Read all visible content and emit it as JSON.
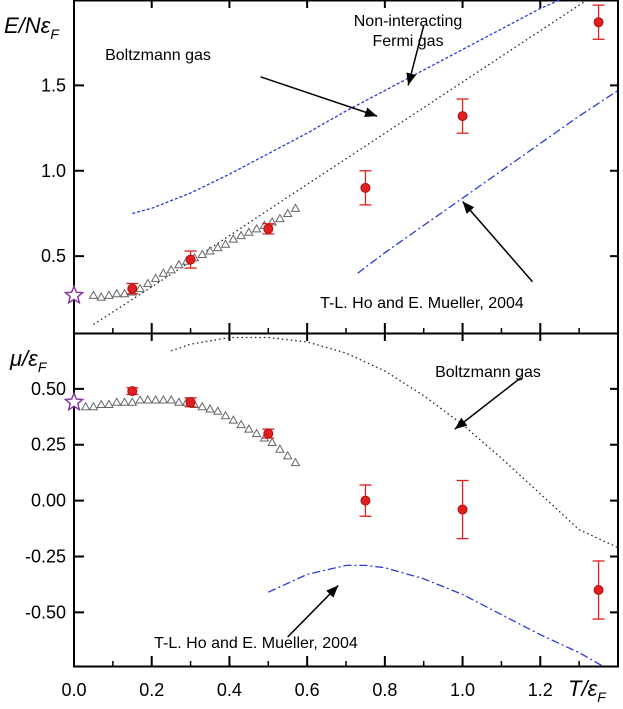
{
  "chart_data": [
    {
      "type": "scatter",
      "panel": "top",
      "ylabel": {
        "main": "E/Nε",
        "sub": "F"
      },
      "xlabel": {
        "main": "T/ε",
        "sub": "F"
      },
      "xlim": [
        0.0,
        1.4
      ],
      "ylim": [
        0.05,
        2.0
      ],
      "xticks": [
        "0.0",
        "0.2",
        "0.4",
        "0.6",
        "0.8",
        "1.0",
        "1.2"
      ],
      "yticks": [
        "0.5",
        "1.0",
        "1.5"
      ],
      "series": [
        {
          "kind": "curve",
          "style": "dashed",
          "color": "#2b3bd6",
          "points": [
            [
              0.15,
              0.75
            ],
            [
              0.2,
              0.78
            ],
            [
              0.3,
              0.87
            ],
            [
              0.4,
              0.98
            ],
            [
              0.5,
              1.1
            ],
            [
              0.6,
              1.22
            ],
            [
              0.7,
              1.35
            ],
            [
              0.8,
              1.47
            ],
            [
              0.9,
              1.59
            ],
            [
              1.0,
              1.71
            ],
            [
              1.1,
              1.83
            ],
            [
              1.2,
              1.95
            ],
            [
              1.25,
              2.0
            ]
          ]
        },
        {
          "kind": "curve",
          "style": "dotted",
          "color": "#222222",
          "points": [
            [
              0.05,
              0.1
            ],
            [
              0.2,
              0.32
            ],
            [
              0.4,
              0.62
            ],
            [
              0.6,
              0.92
            ],
            [
              0.8,
              1.22
            ],
            [
              1.0,
              1.52
            ],
            [
              1.2,
              1.82
            ],
            [
              1.32,
              2.0
            ]
          ]
        },
        {
          "kind": "curve",
          "style": "dashdot",
          "color": "#2b3bd6",
          "points": [
            [
              0.73,
              0.4
            ],
            [
              0.8,
              0.52
            ],
            [
              0.9,
              0.68
            ],
            [
              1.0,
              0.84
            ],
            [
              1.1,
              1.0
            ],
            [
              1.2,
              1.16
            ],
            [
              1.3,
              1.32
            ],
            [
              1.4,
              1.47
            ]
          ]
        },
        {
          "kind": "triangles",
          "color": "#666666",
          "points": [
            [
              0.05,
              0.27
            ],
            [
              0.07,
              0.26
            ],
            [
              0.09,
              0.27
            ],
            [
              0.11,
              0.28
            ],
            [
              0.13,
              0.28
            ],
            [
              0.15,
              0.29
            ],
            [
              0.17,
              0.31
            ],
            [
              0.19,
              0.34
            ],
            [
              0.21,
              0.37
            ],
            [
              0.23,
              0.4
            ],
            [
              0.25,
              0.42
            ],
            [
              0.27,
              0.45
            ],
            [
              0.29,
              0.47
            ],
            [
              0.31,
              0.49
            ],
            [
              0.33,
              0.51
            ],
            [
              0.35,
              0.53
            ],
            [
              0.37,
              0.55
            ],
            [
              0.39,
              0.57
            ],
            [
              0.41,
              0.6
            ],
            [
              0.43,
              0.62
            ],
            [
              0.45,
              0.64
            ],
            [
              0.47,
              0.66
            ],
            [
              0.49,
              0.68
            ],
            [
              0.51,
              0.7
            ],
            [
              0.53,
              0.72
            ],
            [
              0.55,
              0.75
            ],
            [
              0.57,
              0.78
            ]
          ]
        },
        {
          "kind": "errorbar",
          "color": "#e02020",
          "points": [
            {
              "x": 0.15,
              "y": 0.31,
              "err": 0.03
            },
            {
              "x": 0.3,
              "y": 0.48,
              "err": 0.05
            },
            {
              "x": 0.5,
              "y": 0.66,
              "err": 0.03
            },
            {
              "x": 0.75,
              "y": 0.9,
              "err": 0.1
            },
            {
              "x": 1.0,
              "y": 1.32,
              "err": 0.1
            },
            {
              "x": 1.35,
              "y": 1.87,
              "err": 0.1
            }
          ]
        },
        {
          "kind": "star",
          "color": "#8a3aa0",
          "points": [
            [
              0.0,
              0.27
            ]
          ]
        }
      ],
      "annotations": [
        {
          "lines": [
            "Non-interacting",
            "Fermi gas"
          ],
          "arrow_from": [
            0.9,
            1.85
          ],
          "arrow_to": [
            0.86,
            1.5
          ]
        },
        {
          "lines": [
            "Boltzmann gas"
          ],
          "arrow_from": [
            0.48,
            1.55
          ],
          "arrow_to": [
            0.78,
            1.32
          ]
        },
        {
          "lines": [
            "T-L. Ho and E. Mueller, 2004"
          ],
          "arrow_from": [
            1.18,
            0.35
          ],
          "arrow_to": [
            1.0,
            0.82
          ]
        }
      ]
    },
    {
      "type": "scatter",
      "panel": "bottom",
      "ylabel": {
        "main": "μ/ε",
        "sub": "F"
      },
      "xlabel": {
        "main": "T/ε",
        "sub": "F"
      },
      "xlim": [
        0.0,
        1.4
      ],
      "ylim": [
        -0.74,
        0.75
      ],
      "xticks": [
        "0.0",
        "0.2",
        "0.4",
        "0.6",
        "0.8",
        "1.0",
        "1.2"
      ],
      "yticks": [
        "0.50",
        "0.25",
        "0.00",
        "-0.25",
        "-0.50"
      ],
      "series": [
        {
          "kind": "curve",
          "style": "dotted",
          "color": "#222222",
          "points": [
            [
              0.25,
              0.67
            ],
            [
              0.3,
              0.7
            ],
            [
              0.4,
              0.73
            ],
            [
              0.5,
              0.73
            ],
            [
              0.6,
              0.71
            ],
            [
              0.7,
              0.66
            ],
            [
              0.8,
              0.58
            ],
            [
              0.9,
              0.47
            ],
            [
              1.0,
              0.34
            ],
            [
              1.1,
              0.19
            ],
            [
              1.2,
              0.03
            ],
            [
              1.3,
              -0.13
            ],
            [
              1.4,
              -0.21
            ]
          ]
        },
        {
          "kind": "curve",
          "style": "dashdot",
          "color": "#2b3bd6",
          "points": [
            [
              0.5,
              -0.41
            ],
            [
              0.55,
              -0.37
            ],
            [
              0.6,
              -0.33
            ],
            [
              0.65,
              -0.31
            ],
            [
              0.7,
              -0.29
            ],
            [
              0.75,
              -0.29
            ],
            [
              0.8,
              -0.3
            ],
            [
              0.9,
              -0.35
            ],
            [
              1.0,
              -0.42
            ],
            [
              1.1,
              -0.51
            ],
            [
              1.2,
              -0.6
            ],
            [
              1.3,
              -0.68
            ],
            [
              1.36,
              -0.74
            ]
          ]
        },
        {
          "kind": "triangles",
          "color": "#666666",
          "points": [
            [
              0.03,
              0.42
            ],
            [
              0.05,
              0.42
            ],
            [
              0.07,
              0.43
            ],
            [
              0.09,
              0.43
            ],
            [
              0.11,
              0.44
            ],
            [
              0.13,
              0.44
            ],
            [
              0.15,
              0.44
            ],
            [
              0.17,
              0.45
            ],
            [
              0.19,
              0.45
            ],
            [
              0.21,
              0.45
            ],
            [
              0.23,
              0.45
            ],
            [
              0.25,
              0.45
            ],
            [
              0.27,
              0.44
            ],
            [
              0.29,
              0.44
            ],
            [
              0.31,
              0.43
            ],
            [
              0.33,
              0.42
            ],
            [
              0.35,
              0.41
            ],
            [
              0.37,
              0.4
            ],
            [
              0.39,
              0.38
            ],
            [
              0.41,
              0.36
            ],
            [
              0.43,
              0.34
            ],
            [
              0.45,
              0.32
            ],
            [
              0.47,
              0.3
            ],
            [
              0.49,
              0.28
            ],
            [
              0.51,
              0.26
            ],
            [
              0.53,
              0.23
            ],
            [
              0.55,
              0.2
            ],
            [
              0.57,
              0.17
            ]
          ]
        },
        {
          "kind": "errorbar",
          "color": "#e02020",
          "points": [
            {
              "x": 0.15,
              "y": 0.49,
              "err": 0.015
            },
            {
              "x": 0.3,
              "y": 0.44,
              "err": 0.02
            },
            {
              "x": 0.5,
              "y": 0.3,
              "err": 0.02
            },
            {
              "x": 0.75,
              "y": 0.0,
              "err": 0.07
            },
            {
              "x": 1.0,
              "y": -0.04,
              "err": 0.13
            },
            {
              "x": 1.35,
              "y": -0.4,
              "err": 0.13
            }
          ]
        },
        {
          "kind": "star",
          "color": "#8a3aa0",
          "points": [
            [
              0.0,
              0.44
            ]
          ]
        }
      ],
      "annotations": [
        {
          "lines": [
            "Boltzmann gas"
          ],
          "arrow_from": [
            1.15,
            0.55
          ],
          "arrow_to": [
            0.98,
            0.32
          ]
        },
        {
          "lines": [
            "T-L. Ho and E. Mueller, 2004"
          ],
          "arrow_from": [
            0.55,
            -0.61
          ],
          "arrow_to": [
            0.68,
            -0.38
          ]
        }
      ]
    }
  ]
}
